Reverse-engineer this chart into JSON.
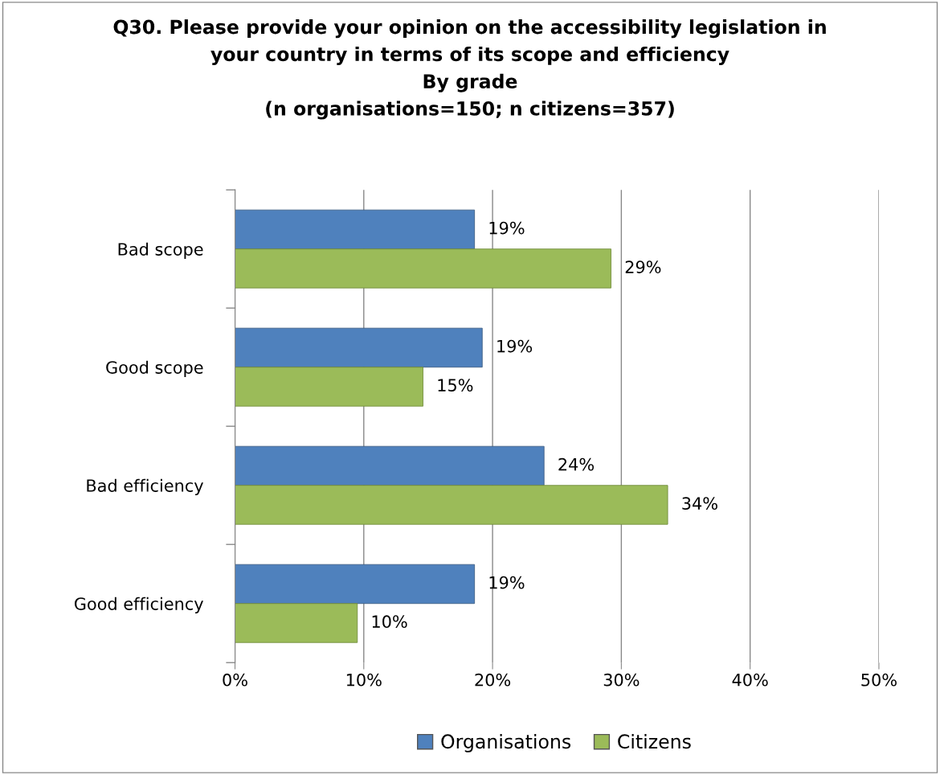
{
  "chart_data": {
    "type": "bar",
    "orientation": "horizontal",
    "title": "Q30. Please provide your opinion on the accessibility legislation in\nyour country in terms of its scope and efficiency\nBy grade\n(n organisations=150; n citizens=357)",
    "categories": [
      "Bad scope",
      "Good scope",
      "Bad efficiency",
      "Good efficiency"
    ],
    "series": [
      {
        "name": "Organisations",
        "color": "#4f81bd",
        "values": [
          18.6,
          19.2,
          24.0,
          18.6
        ],
        "value_labels": [
          "19%",
          "19%",
          "24%",
          "19%"
        ]
      },
      {
        "name": "Citizens",
        "color": "#9bbb59",
        "values": [
          29.2,
          14.6,
          33.6,
          9.5
        ],
        "value_labels": [
          "29%",
          "15%",
          "34%",
          "10%"
        ]
      }
    ],
    "xlim": [
      0,
      50
    ],
    "xticks": [
      {
        "value": 0,
        "label": "0%"
      },
      {
        "value": 10,
        "label": "10%"
      },
      {
        "value": 20,
        "label": "20%"
      },
      {
        "value": 30,
        "label": "30%"
      },
      {
        "value": 40,
        "label": "40%"
      },
      {
        "value": 50,
        "label": "50%"
      }
    ],
    "grid": "x",
    "legend": "bottom"
  }
}
